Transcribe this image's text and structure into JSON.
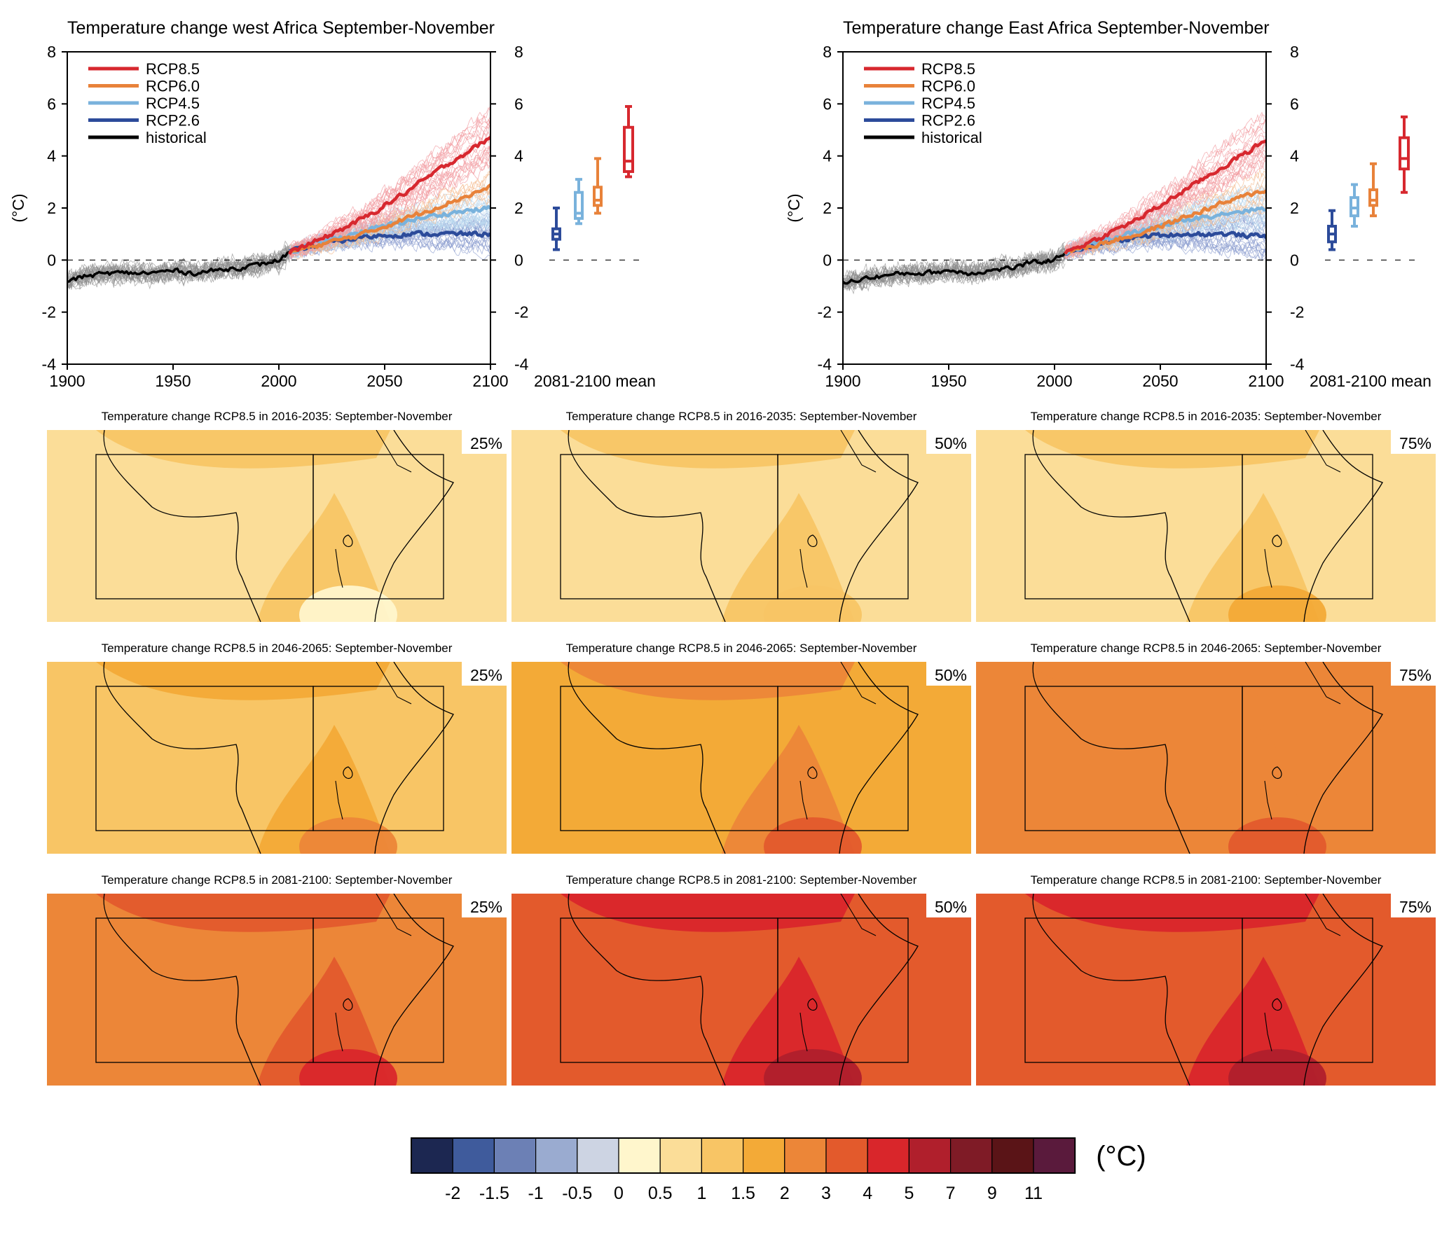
{
  "colors": {
    "rcp85": "#d7282f",
    "rcp60": "#e8823a",
    "rcp45": "#79b2dc",
    "rcp26": "#2c4b9a",
    "historical": "#000000",
    "colorbar": [
      "#1c2751",
      "#3f5b9c",
      "#6c80b5",
      "#9aabd0",
      "#cdd4e3",
      "#fff6cc",
      "#fbdd98",
      "#f8c565",
      "#f3aa37",
      "#ec8638",
      "#e35a2c",
      "#d9262b",
      "#b01f2c",
      "#7f1b26",
      "#5a1417",
      "#5a1a3c"
    ]
  },
  "chart_data": [
    {
      "type": "line",
      "title": "Temperature change west Africa September-November",
      "ylabel": "(°C)",
      "xlim": [
        1900,
        2100
      ],
      "ylim": [
        -4,
        8
      ],
      "x_ticks": [
        "1900",
        "1950",
        "2000",
        "2050",
        "2100"
      ],
      "y_ticks": [
        "8",
        "6",
        "4",
        "2",
        "0",
        "-2",
        "-4"
      ],
      "legend": [
        "RCP8.5",
        "RCP6.0",
        "RCP4.5",
        "RCP2.6",
        "historical"
      ],
      "legend_position": "top-left",
      "boxplot_label": "2081-2100 mean",
      "series": [
        {
          "name": "historical",
          "x": [
            1900,
            1910,
            1920,
            1930,
            1940,
            1950,
            1960,
            1970,
            1980,
            1990,
            2000,
            2005
          ],
          "values": [
            -0.8,
            -0.6,
            -0.5,
            -0.5,
            -0.5,
            -0.4,
            -0.5,
            -0.4,
            -0.3,
            -0.2,
            0.0,
            0.3
          ]
        },
        {
          "name": "RCP2.6",
          "x": [
            2005,
            2020,
            2040,
            2060,
            2080,
            2100
          ],
          "values": [
            0.3,
            0.6,
            0.9,
            1.0,
            1.0,
            1.0
          ]
        },
        {
          "name": "RCP4.5",
          "x": [
            2005,
            2020,
            2040,
            2060,
            2080,
            2100
          ],
          "values": [
            0.3,
            0.7,
            1.1,
            1.5,
            1.8,
            2.0
          ]
        },
        {
          "name": "RCP6.0",
          "x": [
            2005,
            2020,
            2040,
            2060,
            2080,
            2100
          ],
          "values": [
            0.3,
            0.6,
            1.0,
            1.6,
            2.2,
            2.8
          ]
        },
        {
          "name": "RCP8.5",
          "x": [
            2005,
            2020,
            2040,
            2060,
            2080,
            2100
          ],
          "values": [
            0.3,
            0.8,
            1.6,
            2.6,
            3.7,
            4.7
          ]
        }
      ],
      "boxes": [
        {
          "name": "RCP2.6",
          "min": 0.4,
          "q1": 0.8,
          "median": 1.0,
          "q3": 1.2,
          "max": 2.0
        },
        {
          "name": "RCP4.5",
          "min": 1.4,
          "q1": 1.6,
          "median": 1.8,
          "q3": 2.6,
          "max": 3.1
        },
        {
          "name": "RCP6.0",
          "min": 1.8,
          "q1": 2.1,
          "median": 2.3,
          "q3": 2.8,
          "max": 3.9
        },
        {
          "name": "RCP8.5",
          "min": 3.2,
          "q1": 3.4,
          "median": 3.8,
          "q3": 5.1,
          "max": 5.9
        }
      ]
    },
    {
      "type": "line",
      "title": "Temperature change East Africa September-November",
      "ylabel": "(°C)",
      "xlim": [
        1900,
        2100
      ],
      "ylim": [
        -4,
        8
      ],
      "x_ticks": [
        "1900",
        "1950",
        "2000",
        "2050",
        "2100"
      ],
      "y_ticks": [
        "8",
        "6",
        "4",
        "2",
        "0",
        "-2",
        "-4"
      ],
      "legend": [
        "RCP8.5",
        "RCP6.0",
        "RCP4.5",
        "RCP2.6",
        "historical"
      ],
      "legend_position": "top-left",
      "boxplot_label": "2081-2100 mean",
      "series": [
        {
          "name": "historical",
          "x": [
            1900,
            1910,
            1920,
            1930,
            1940,
            1950,
            1960,
            1970,
            1980,
            1990,
            2000,
            2005
          ],
          "values": [
            -0.9,
            -0.7,
            -0.6,
            -0.5,
            -0.5,
            -0.4,
            -0.5,
            -0.4,
            -0.3,
            -0.1,
            0.0,
            0.3
          ]
        },
        {
          "name": "RCP2.6",
          "x": [
            2005,
            2020,
            2040,
            2060,
            2080,
            2100
          ],
          "values": [
            0.3,
            0.6,
            0.9,
            1.0,
            1.0,
            0.9
          ]
        },
        {
          "name": "RCP4.5",
          "x": [
            2005,
            2020,
            2040,
            2060,
            2080,
            2100
          ],
          "values": [
            0.3,
            0.7,
            1.1,
            1.5,
            1.8,
            2.0
          ]
        },
        {
          "name": "RCP6.0",
          "x": [
            2005,
            2020,
            2040,
            2060,
            2080,
            2100
          ],
          "values": [
            0.3,
            0.6,
            1.0,
            1.6,
            2.2,
            2.7
          ]
        },
        {
          "name": "RCP8.5",
          "x": [
            2005,
            2020,
            2040,
            2060,
            2080,
            2100
          ],
          "values": [
            0.3,
            0.8,
            1.6,
            2.6,
            3.6,
            4.6
          ]
        }
      ],
      "boxes": [
        {
          "name": "RCP2.6",
          "min": 0.4,
          "q1": 0.7,
          "median": 1.0,
          "q3": 1.3,
          "max": 1.9
        },
        {
          "name": "RCP4.5",
          "min": 1.3,
          "q1": 1.7,
          "median": 2.0,
          "q3": 2.4,
          "max": 2.9
        },
        {
          "name": "RCP6.0",
          "min": 1.7,
          "q1": 2.1,
          "median": 2.3,
          "q3": 2.7,
          "max": 3.7
        },
        {
          "name": "RCP8.5",
          "min": 2.6,
          "q1": 3.5,
          "median": 3.9,
          "q3": 4.7,
          "max": 5.5
        }
      ]
    },
    {
      "type": "heatmap",
      "maps": [
        {
          "title": "Temperature change RCP8.5 in 2016-2035: September-November",
          "percentile": "25%",
          "base": "#fbdd98",
          "warm": "#f8c565",
          "hot": "#fff6cc"
        },
        {
          "title": "Temperature change RCP8.5 in 2016-2035: September-November",
          "percentile": "50%",
          "base": "#fbdd98",
          "warm": "#f8c565",
          "hot": "#f8c565"
        },
        {
          "title": "Temperature change RCP8.5 in 2016-2035: September-November",
          "percentile": "75%",
          "base": "#fbdd98",
          "warm": "#f8c565",
          "hot": "#f3aa37"
        },
        {
          "title": "Temperature change RCP8.5 in 2046-2065: September-November",
          "percentile": "25%",
          "base": "#f8c565",
          "warm": "#f3aa37",
          "hot": "#ec8638"
        },
        {
          "title": "Temperature change RCP8.5 in 2046-2065: September-November",
          "percentile": "50%",
          "base": "#f3aa37",
          "warm": "#ec8638",
          "hot": "#e35a2c"
        },
        {
          "title": "Temperature change RCP8.5 in 2046-2065: September-November",
          "percentile": "75%",
          "base": "#ec8638",
          "warm": "#ec8638",
          "hot": "#e35a2c"
        },
        {
          "title": "Temperature change RCP8.5 in 2081-2100: September-November",
          "percentile": "25%",
          "base": "#ec8638",
          "warm": "#e35a2c",
          "hot": "#d9262b"
        },
        {
          "title": "Temperature change RCP8.5 in 2081-2100: September-November",
          "percentile": "50%",
          "base": "#e35a2c",
          "warm": "#d9262b",
          "hot": "#b01f2c"
        },
        {
          "title": "Temperature change RCP8.5 in 2081-2100: September-November",
          "percentile": "75%",
          "base": "#e35a2c",
          "warm": "#d9262b",
          "hot": "#b01f2c"
        }
      ]
    }
  ],
  "colorbar": {
    "labels": [
      "-2",
      "-1.5",
      "-1",
      "-0.5",
      "0",
      "0.5",
      "1",
      "1.5",
      "2",
      "3",
      "4",
      "5",
      "7",
      "9",
      "11"
    ],
    "unit": "(°C)"
  }
}
